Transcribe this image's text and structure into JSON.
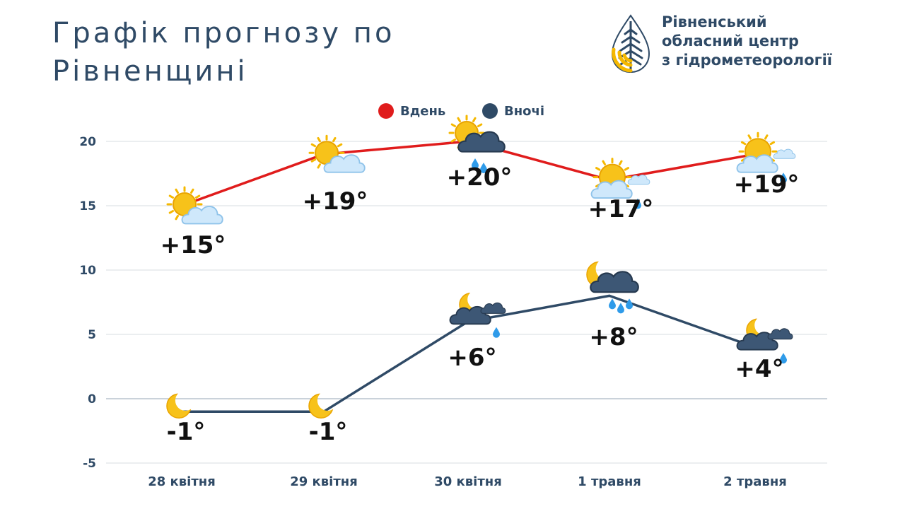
{
  "header": {
    "title": "Графік прогнозу по Рівненщині"
  },
  "logo": {
    "line1": "Рівненський",
    "line2": "обласний центр",
    "line3": "з гідрометеорології"
  },
  "colors": {
    "day": "#e01c1c",
    "night": "#2f4a66",
    "grid": "#dfe3e8",
    "text": "#2f4a66",
    "sun": "#f5b800",
    "logo_gold": "#f5b800",
    "logo_navy": "#2f4a66"
  },
  "chart_data": {
    "type": "line",
    "title": "",
    "xlabel": "",
    "ylabel": "",
    "categories": [
      "28 квітня",
      "29 квітня",
      "30 квітня",
      "1 травня",
      "2 травня"
    ],
    "ylim": [
      -5,
      20
    ],
    "yticks": [
      -5,
      0,
      5,
      10,
      15,
      20
    ],
    "grid": true,
    "legend_position": "top-center",
    "series": [
      {
        "name": "Вдень",
        "color": "#e01c1c",
        "values": [
          15,
          19,
          20,
          17,
          19
        ],
        "labels": [
          "+15°",
          "+19°",
          "+20°",
          "+17°",
          "+19°"
        ],
        "icons": [
          "sun-cloud-icon",
          "sun-cloud-icon",
          "sun-rain-cloud-icon",
          "sun-cloud-rain-icon",
          "sun-cloud-rain-icon"
        ]
      },
      {
        "name": "Вночі",
        "color": "#2f4a66",
        "values": [
          -1,
          -1,
          6,
          8,
          4
        ],
        "labels": [
          "-1°",
          "-1°",
          "+6°",
          "+8°",
          "+4°"
        ],
        "icons": [
          "moon-icon",
          "moon-icon",
          "moon-cloud-rain-icon",
          "moon-rain-cloud-icon",
          "moon-cloud-rain-icon"
        ]
      }
    ]
  }
}
